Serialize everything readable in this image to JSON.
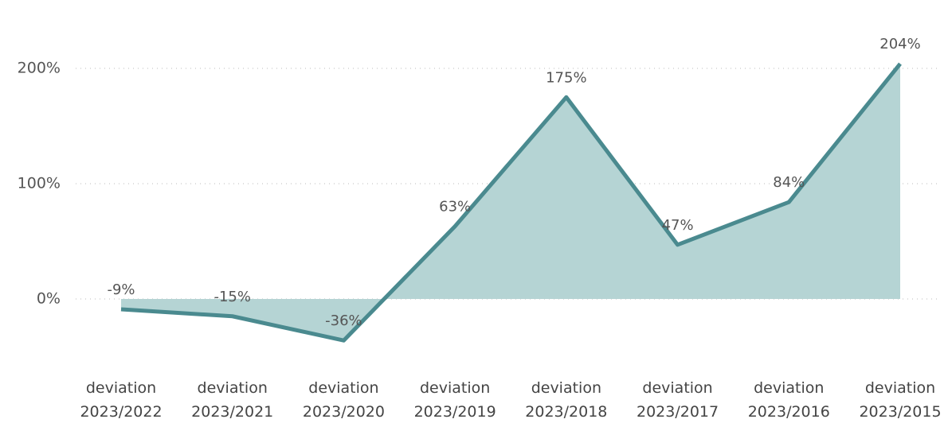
{
  "chart_data": {
    "type": "area",
    "categories": [
      "deviation 2023/2022",
      "deviation 2023/2021",
      "deviation 2023/2020",
      "deviation 2023/2019",
      "deviation 2023/2018",
      "deviation 2023/2017",
      "deviation 2023/2016",
      "deviation 2023/2015"
    ],
    "series": [
      {
        "color": "#4a8a8f",
        "fill": "#b5d4d4",
        "values": [
          -9,
          -15,
          -36,
          63,
          175,
          47,
          84,
          204
        ],
        "value_labels": [
          "-9%",
          "-15%",
          "-36%",
          "63%",
          "175%",
          "47%",
          "84%",
          "204%"
        ]
      }
    ],
    "ylim": [
      -50,
      230
    ],
    "yticks": [
      {
        "value": 0,
        "label": "0%"
      },
      {
        "value": 100,
        "label": "100%"
      },
      {
        "value": 200,
        "label": "200%"
      }
    ],
    "grid": true
  }
}
